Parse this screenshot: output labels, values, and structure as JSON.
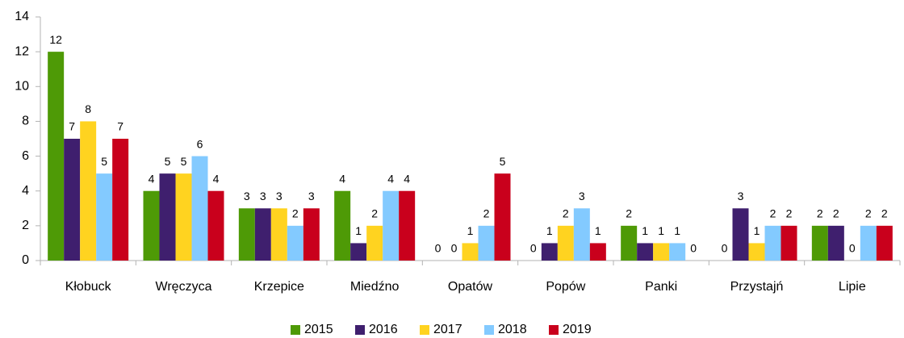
{
  "chart_data": {
    "type": "bar",
    "categories": [
      "Kłobuck",
      "Wręczyca",
      "Krzepice",
      "Miedźno",
      "Opatów",
      "Popów",
      "Panki",
      "Przystajń",
      "Lipie"
    ],
    "series": [
      {
        "name": "2015",
        "color": "#4e9a06",
        "values": [
          12,
          4,
          3,
          4,
          0,
          0,
          2,
          0,
          2
        ]
      },
      {
        "name": "2016",
        "color": "#3f1f6e",
        "values": [
          7,
          5,
          3,
          1,
          0,
          1,
          1,
          3,
          2
        ]
      },
      {
        "name": "2017",
        "color": "#ffd320",
        "values": [
          8,
          5,
          3,
          2,
          1,
          2,
          1,
          1,
          0
        ]
      },
      {
        "name": "2018",
        "color": "#83caff",
        "values": [
          5,
          6,
          2,
          4,
          2,
          3,
          1,
          2,
          2
        ]
      },
      {
        "name": "2019",
        "color": "#c9001c",
        "values": [
          7,
          4,
          3,
          4,
          5,
          1,
          0,
          2,
          2
        ]
      }
    ],
    "ylim": [
      0,
      14
    ],
    "yticks": [
      0,
      2,
      4,
      6,
      8,
      10,
      12,
      14
    ],
    "legend": "bottom"
  }
}
